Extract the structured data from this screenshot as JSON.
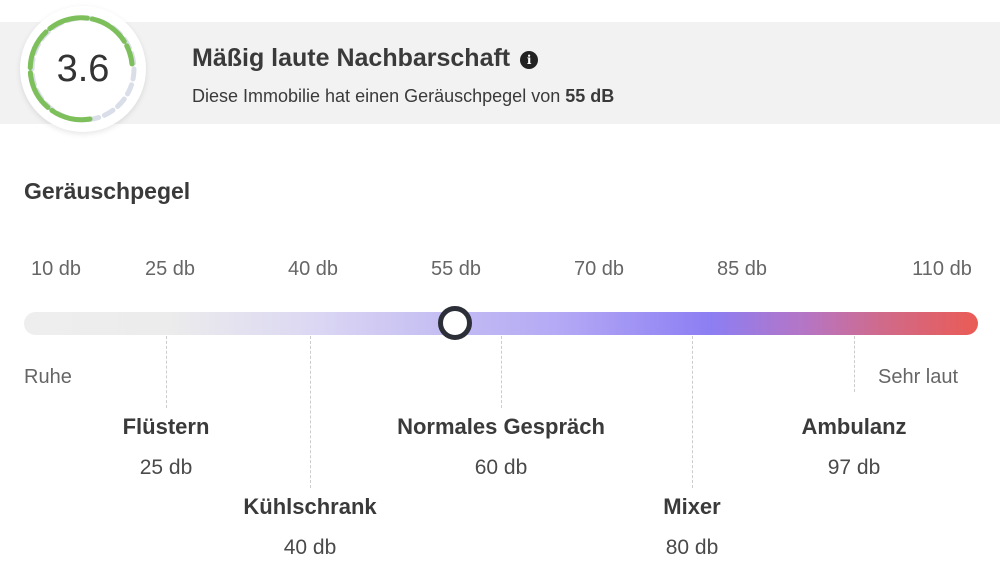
{
  "header": {
    "score": "3.6",
    "title": "Mäßig laute Nachbarschaft",
    "subtitle_prefix": "Diese Immobilie hat einen Geräuschpegel von",
    "subtitle_value": "55 dB",
    "score_arc_color": "#7dbf5a",
    "score_track_color": "#d9dee8"
  },
  "scale": {
    "title": "Geräuschpegel",
    "ticks": [
      "10 db",
      "25 db",
      "40 db",
      "55 db",
      "70 db",
      "85 db",
      "110 db"
    ],
    "min_label": "Ruhe",
    "max_label": "Sehr laut",
    "current_db": 55,
    "gradient_end_color": "#ea5b55"
  },
  "references": [
    {
      "name": "Flüstern",
      "value": "25 db"
    },
    {
      "name": "Kühlschrank",
      "value": "40 db"
    },
    {
      "name": "Normales Gespräch",
      "value": "60 db"
    },
    {
      "name": "Mixer",
      "value": "80 db"
    },
    {
      "name": "Ambulanz",
      "value": "97 db"
    }
  ]
}
